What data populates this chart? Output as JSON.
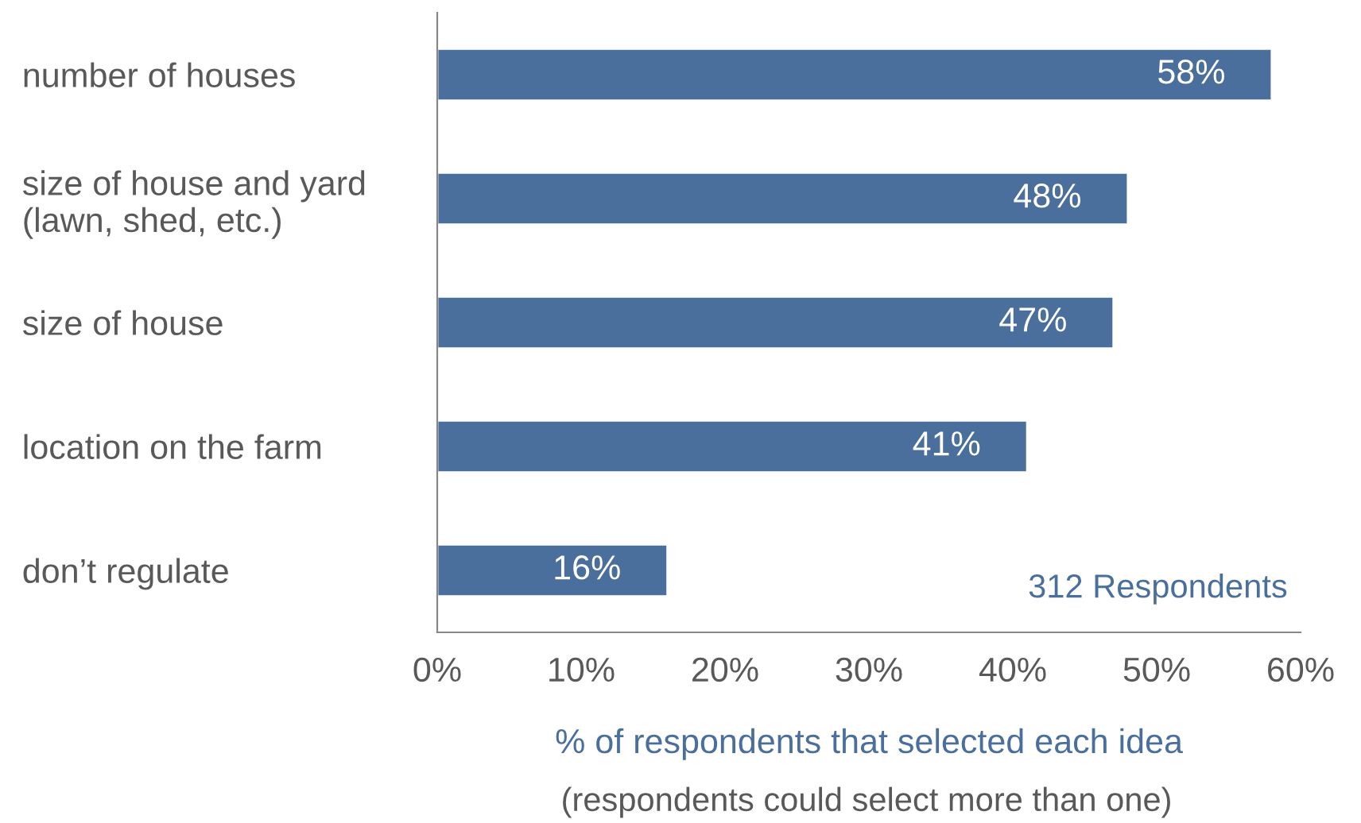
{
  "chart_data": {
    "type": "bar",
    "orientation": "horizontal",
    "categories": [
      "number of houses",
      "size of house and yard\n(lawn, shed, etc.)",
      "size of house",
      "location on the farm",
      "don’t regulate"
    ],
    "values": [
      58,
      48,
      47,
      41,
      16
    ],
    "value_labels": [
      "58%",
      "48%",
      "47%",
      "41%",
      "16%"
    ],
    "color": "#4a6f9c",
    "xlim": [
      0,
      60
    ],
    "xticks": [
      {
        "value": 0,
        "label": "0%"
      },
      {
        "value": 10,
        "label": "10%"
      },
      {
        "value": 20,
        "label": "20%"
      },
      {
        "value": 30,
        "label": "30%"
      },
      {
        "value": 40,
        "label": "40%"
      },
      {
        "value": 50,
        "label": "50%"
      },
      {
        "value": 60,
        "label": "60%"
      }
    ],
    "xlabel": "% of respondents that selected each idea",
    "annotations": [
      "(respondents could select more than one)",
      "312 Respondents"
    ],
    "grid": false,
    "legend": false
  }
}
